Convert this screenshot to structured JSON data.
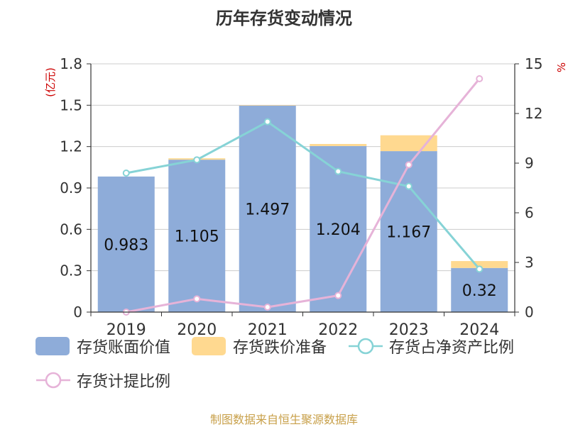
{
  "title": "历年存货变动情况",
  "source": "制图数据来自恒生聚源数据库",
  "colors": {
    "book_value": "#8eacd9",
    "provision": "#ffd990",
    "ratio_net_assets": "#86d3d6",
    "provision_ratio": "#e6b3d8",
    "left_unit": "#cc0000",
    "axis": "#333333",
    "grid": "#cccccc"
  },
  "chart_data": {
    "type": "bar",
    "categories": [
      "2019",
      "2020",
      "2021",
      "2022",
      "2023",
      "2024"
    ],
    "left_axis": {
      "unit": "(亿元)",
      "ylim": [
        0,
        1.8
      ],
      "ticks": [
        "0",
        "0.3",
        "0.6",
        "0.9",
        "1.2",
        "1.5",
        "1.8"
      ]
    },
    "right_axis": {
      "unit": "%",
      "ylim": [
        0,
        15
      ],
      "ticks": [
        "0",
        "3",
        "6",
        "9",
        "12",
        "15"
      ]
    },
    "grid": true,
    "legend_position": "bottom",
    "series": [
      {
        "name": "存货账面价值",
        "type": "bar",
        "axis": "left",
        "stack": "inv",
        "values": [
          0.983,
          1.105,
          1.497,
          1.204,
          1.167,
          0.32
        ],
        "labels": [
          "0.983",
          "1.105",
          "1.497",
          "1.204",
          "1.167",
          "0.32"
        ]
      },
      {
        "name": "存货跌价准备",
        "type": "bar",
        "axis": "left",
        "stack": "inv",
        "values": [
          0.0,
          0.01,
          0.003,
          0.015,
          0.115,
          0.05
        ]
      },
      {
        "name": "存货占净资产比例",
        "type": "line",
        "axis": "right",
        "values": [
          8.4,
          9.2,
          11.5,
          8.5,
          7.6,
          2.6
        ]
      },
      {
        "name": "存货计提比例",
        "type": "line",
        "axis": "right",
        "values": [
          0.0,
          0.8,
          0.3,
          1.0,
          8.9,
          14.1
        ]
      }
    ]
  }
}
